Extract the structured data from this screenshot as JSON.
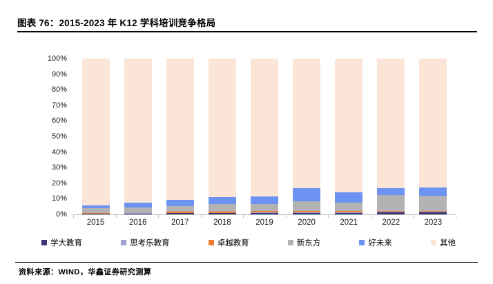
{
  "header": {
    "title": "图表 76：2015-2023 年 K12 学科培训竞争格局"
  },
  "footer": {
    "source": "资料来源：WIND，华鑫证券研究测算"
  },
  "chart_data": {
    "type": "bar",
    "variant": "stacked-100",
    "title": "2015-2023 年 K12 学科培训竞争格局",
    "xlabel": "",
    "ylabel": "",
    "unit": "%",
    "ylim": [
      0,
      100
    ],
    "grid": false,
    "legend_position": "bottom",
    "y_ticks": [
      "0%",
      "10%",
      "20%",
      "30%",
      "40%",
      "50%",
      "60%",
      "70%",
      "80%",
      "90%",
      "100%"
    ],
    "categories": [
      "2015",
      "2016",
      "2017",
      "2018",
      "2019",
      "2020",
      "2021",
      "2022",
      "2023"
    ],
    "series": [
      {
        "name": "学大教育",
        "color": "#3B3478",
        "values": [
          0.5,
          0.5,
          0.7,
          0.7,
          0.9,
          0.9,
          0.9,
          1.2,
          1.2
        ]
      },
      {
        "name": "思考乐教育",
        "color": "#A3A0D2",
        "values": [
          0.1,
          0.2,
          0.3,
          0.3,
          0.4,
          0.4,
          0.4,
          0.5,
          0.5
        ]
      },
      {
        "name": "卓越教育",
        "color": "#ED7D31",
        "values": [
          0.4,
          0.4,
          0.6,
          0.7,
          0.8,
          0.8,
          0.8,
          0.6,
          0.6
        ]
      },
      {
        "name": "新东方",
        "color": "#B3B3B3",
        "values": [
          2.9,
          3.2,
          3.7,
          4.9,
          4.4,
          6.2,
          5.3,
          10.3,
          9.7
        ]
      },
      {
        "name": "好未来",
        "color": "#6C93F2",
        "values": [
          1.9,
          3.4,
          3.8,
          4.5,
          5.1,
          8.6,
          6.8,
          4.4,
          5.3
        ]
      },
      {
        "name": "其他",
        "color": "#FBE5D6",
        "values": [
          94.2,
          92.3,
          90.9,
          88.9,
          88.4,
          83.1,
          85.8,
          83.0,
          82.7
        ]
      }
    ]
  }
}
